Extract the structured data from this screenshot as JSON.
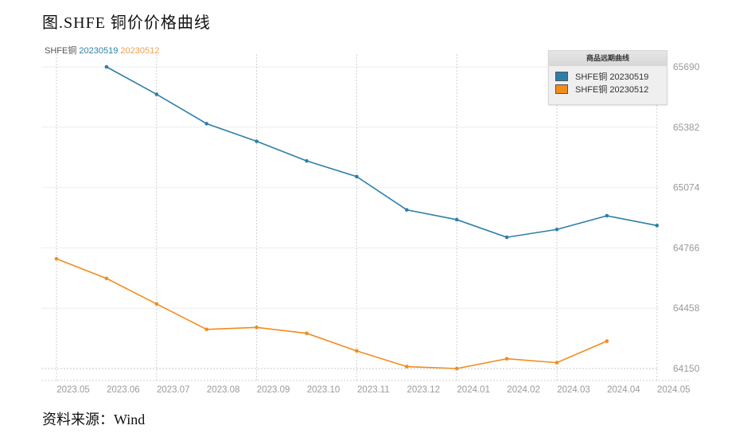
{
  "title": "图.SHFE 铜价价格曲线",
  "subtitle": {
    "prefix": "SHFE铜",
    "series1": "20230519",
    "series2": "20230512"
  },
  "legend": {
    "title": "商品远期曲线",
    "items": [
      {
        "label": "SHFE铜 20230519",
        "color": "#2e7fa8"
      },
      {
        "label": "SHFE铜 20230512",
        "color": "#f28c1e"
      }
    ]
  },
  "source": "资料来源：Wind",
  "chart_data": {
    "type": "line",
    "title": "图.SHFE 铜价价格曲线",
    "xlabel": "",
    "ylabel": "",
    "x_ticks": [
      "2023.05",
      "2023.06",
      "2023.07",
      "2023.08",
      "2023.09",
      "2023.10",
      "2023.11",
      "2023.12",
      "2024.01",
      "2024.02",
      "2024.03",
      "2024.04",
      "2024.05"
    ],
    "y_ticks": [
      64150,
      64458,
      64766,
      65074,
      65382,
      65690
    ],
    "ylim": [
      64150,
      65690
    ],
    "grid": true,
    "legend_position": "top-right",
    "x": [
      "2023.05",
      "2023.06",
      "2023.07",
      "2023.08",
      "2023.09",
      "2023.10",
      "2023.11",
      "2023.12",
      "2024.01",
      "2024.02",
      "2024.03",
      "2024.04",
      "2024.05"
    ],
    "series": [
      {
        "name": "SHFE铜 20230519",
        "color": "#2e7fa8",
        "values": [
          null,
          65690,
          65550,
          65400,
          65310,
          65210,
          65130,
          64960,
          64910,
          64820,
          64860,
          64930,
          64880
        ]
      },
      {
        "name": "SHFE铜 20230512",
        "color": "#f28c1e",
        "values": [
          64710,
          64610,
          64480,
          64350,
          64360,
          64330,
          64240,
          64160,
          64150,
          64200,
          64180,
          64290,
          null
        ]
      }
    ]
  }
}
